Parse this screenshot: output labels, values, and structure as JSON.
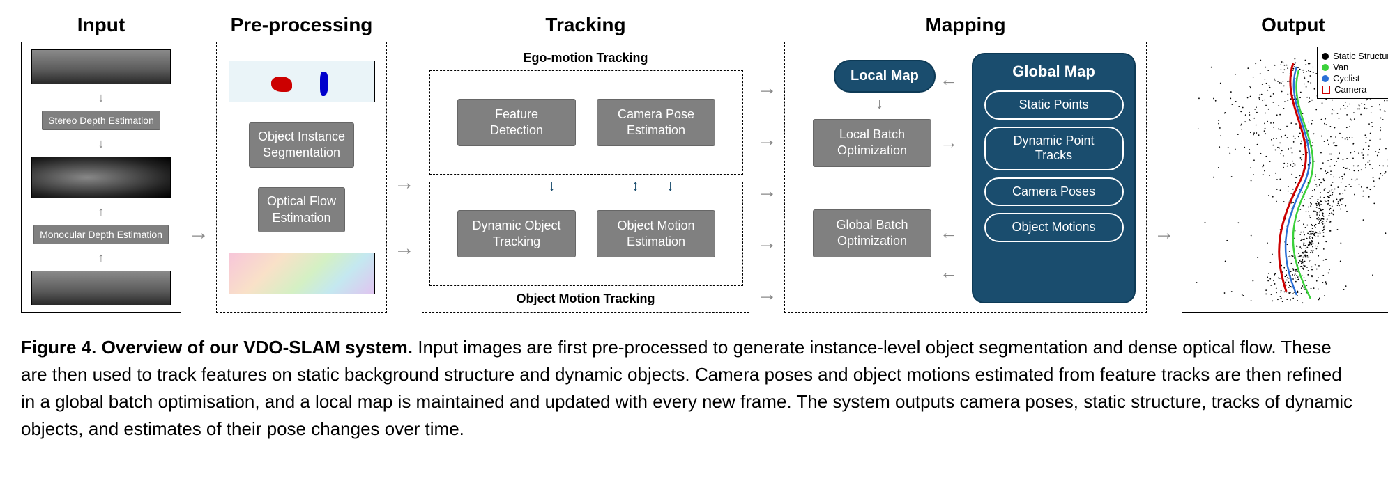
{
  "stages": {
    "input": "Input",
    "preproc": "Pre-processing",
    "tracking": "Tracking",
    "mapping": "Mapping",
    "output": "Output"
  },
  "input": {
    "stereo": "Stereo Depth Estimation",
    "mono": "Monocular Depth Estimation"
  },
  "preproc": {
    "seg": "Object Instance\nSegmentation",
    "flow": "Optical Flow\nEstimation"
  },
  "tracking": {
    "ego_label": "Ego-motion Tracking",
    "obj_label": "Object Motion Tracking",
    "feat": "Feature\nDetection",
    "campose": "Camera Pose\nEstimation",
    "dyntrack": "Dynamic Object\nTracking",
    "objmot": "Object Motion\nEstimation"
  },
  "mapping": {
    "local_map": "Local Map",
    "local_batch": "Local Batch\nOptimization",
    "global_batch": "Global Batch\nOptimization",
    "global_map": "Global Map",
    "pills": {
      "static": "Static Points",
      "dyntracks": "Dynamic Point\nTracks",
      "camposes": "Camera Poses",
      "objmotions": "Object Motions"
    }
  },
  "output": {
    "legend": {
      "static": "Static Structure",
      "van": "Van",
      "cyclist": "Cyclist",
      "camera": "Camera"
    },
    "legend_colors": {
      "static": "#000000",
      "van": "#3bd13b",
      "cyclist": "#2a6fd6",
      "camera": "#cc0000"
    }
  },
  "colors": {
    "gray_box": "#808080",
    "dark_blue": "#1a4d6e",
    "arrow": "#888888"
  },
  "caption": {
    "bold": "Figure 4.  Overview of our VDO-SLAM system.",
    "rest": " Input images are first pre-processed to generate instance-level object segmentation and dense optical flow. These are then used to track features on static background structure and dynamic objects. Camera poses and object motions estimated from feature tracks are then refined in a global batch optimisation, and a local map is maintained and updated with every new frame. The system outputs camera poses, static structure, tracks of dynamic objects, and estimates of their pose changes over time."
  }
}
